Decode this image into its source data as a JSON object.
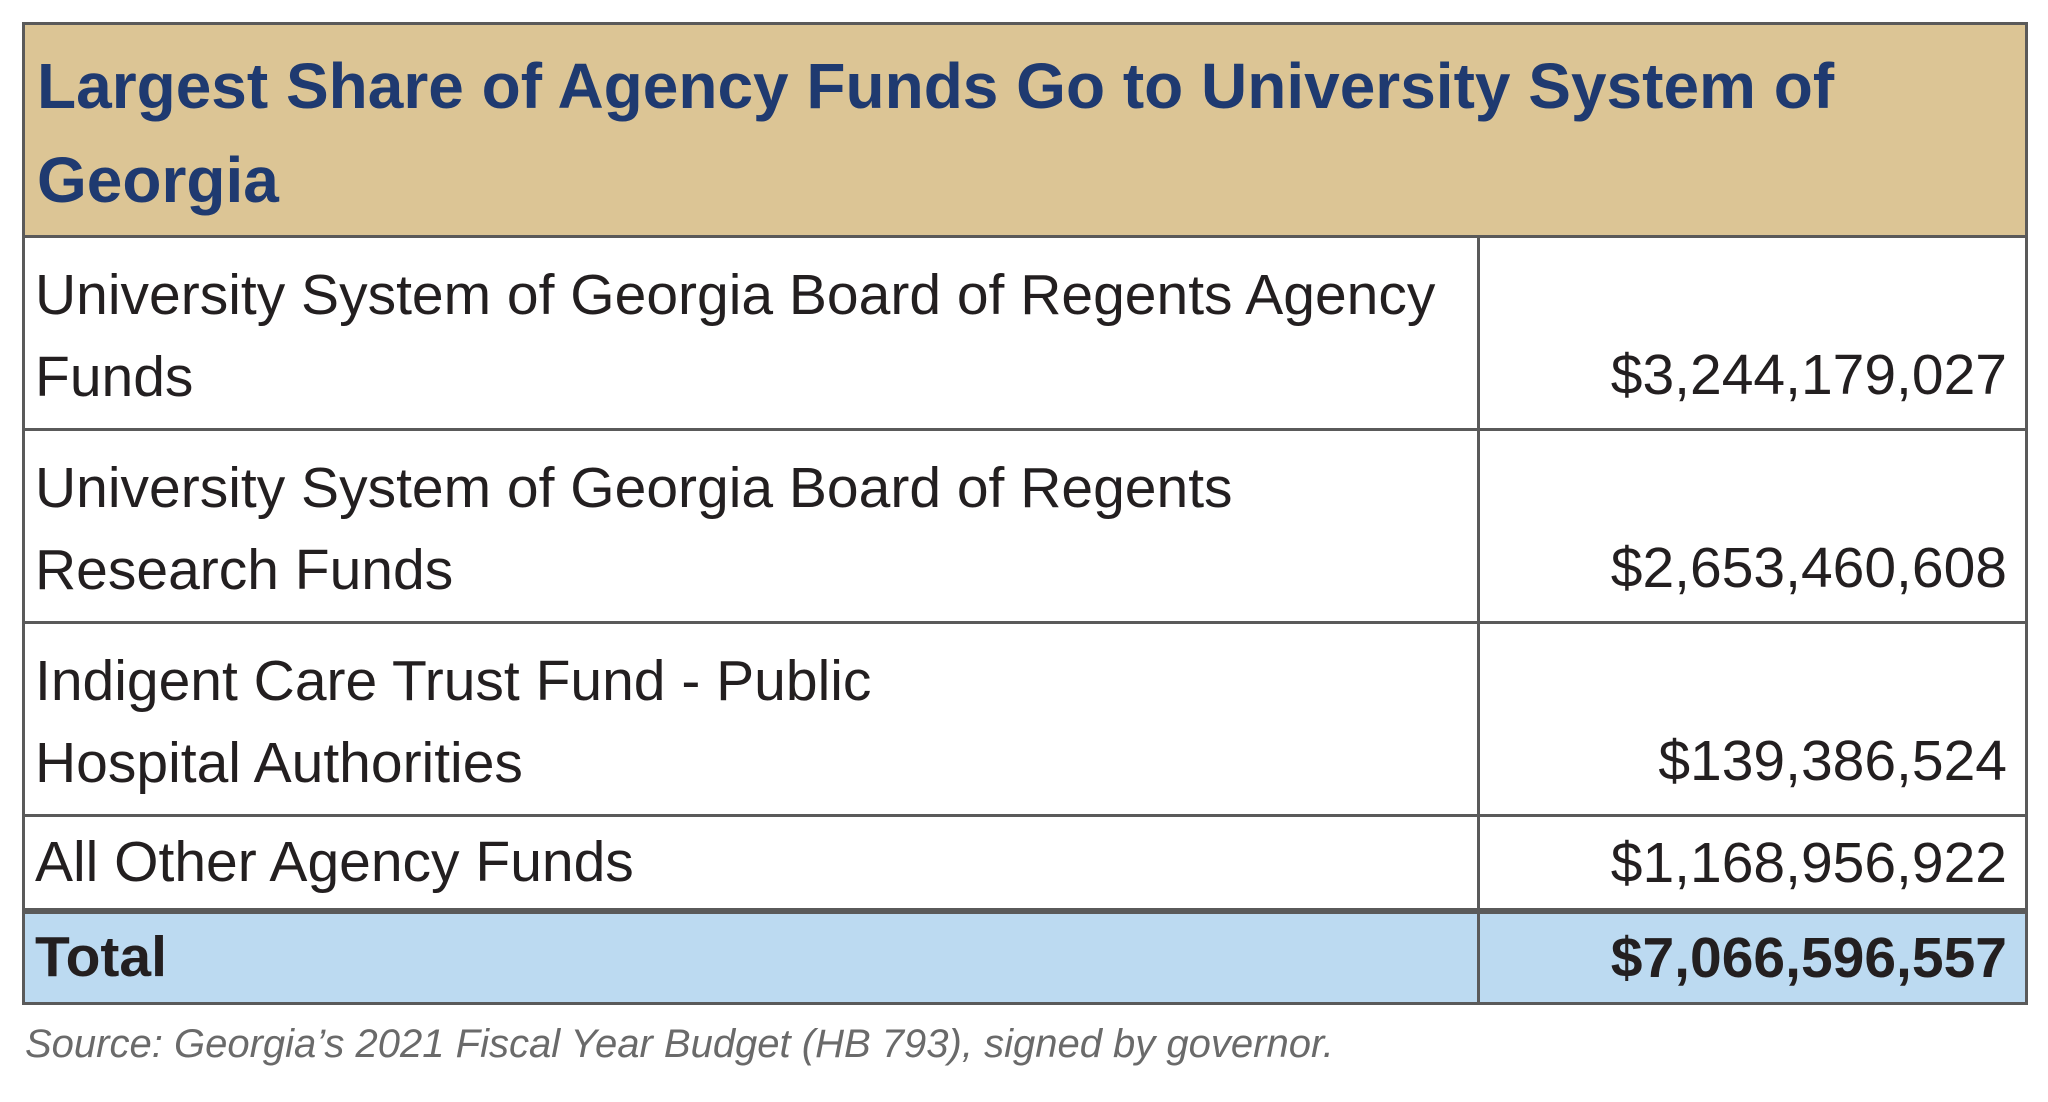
{
  "table": {
    "title": "Largest Share of Agency Funds Go to University System of Georgia",
    "rows": [
      {
        "label": "University System of Georgia Board of Regents Agency Funds",
        "value": "$3,244,179,027"
      },
      {
        "label": "University System of Georgia Board of Regents Research Funds",
        "value": "$2,653,460,608"
      },
      {
        "label": "Indigent Care Trust Fund - Public Hospital Authorities",
        "value": "$139,386,524"
      },
      {
        "label": "All Other Agency Funds",
        "value": "$1,168,956,922"
      }
    ],
    "total": {
      "label": "Total",
      "value": "$7,066,596,557"
    }
  },
  "source": "Source: Georgia’s 2021 Fiscal Year Budget (HB 793), signed by governor.",
  "colors": {
    "header_bg": "#dcc595",
    "title_text": "#1f3a70",
    "total_bg": "#bcdaf1",
    "border": "#5a5a5a"
  }
}
